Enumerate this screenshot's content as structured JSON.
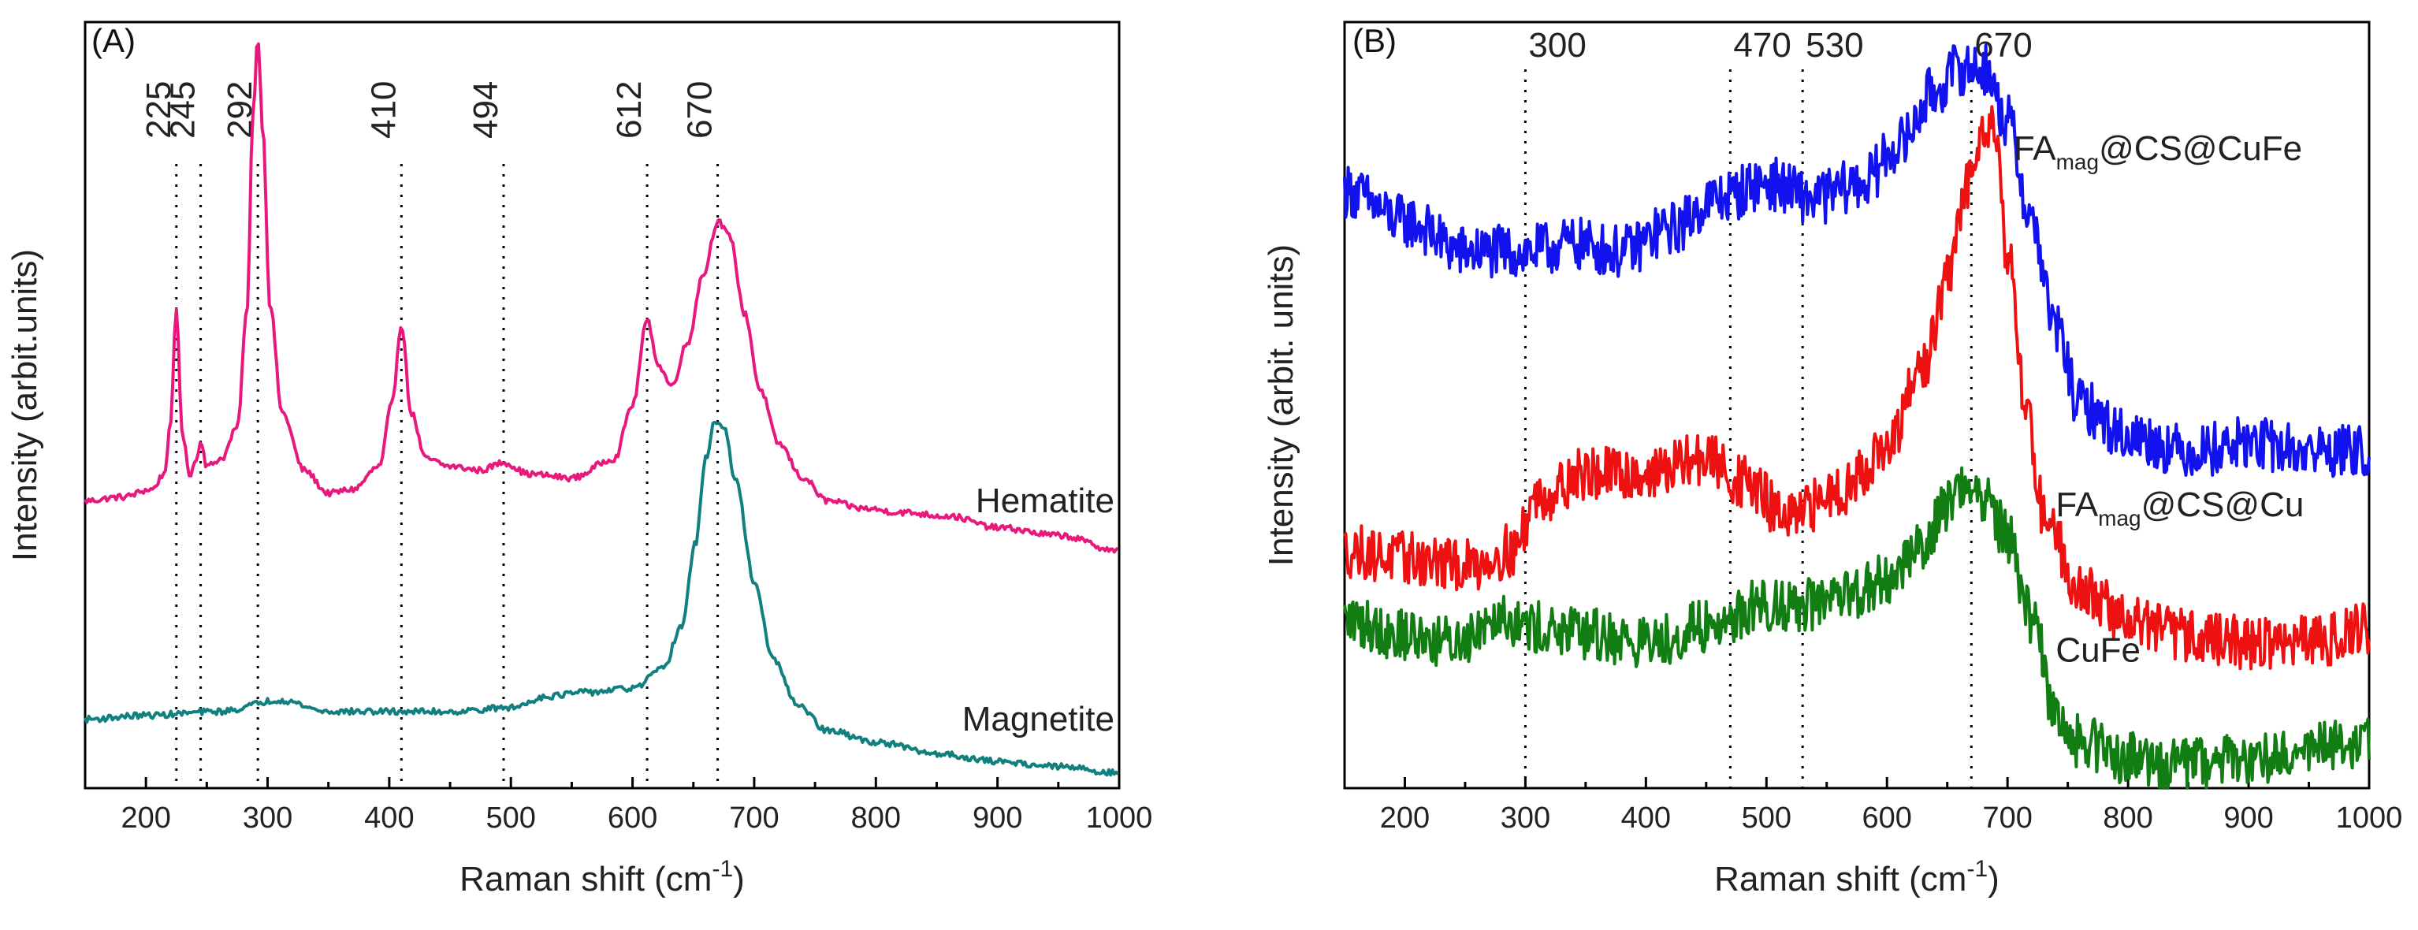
{
  "chart_data": [
    {
      "type": "line",
      "panel_label": "(A)",
      "xlabel": "Raman shift (cm",
      "xlabel_sup": "-1",
      "xlabel_end": ")",
      "ylabel": "Intensity (arbit.units)",
      "xlim": [
        150,
        1000
      ],
      "ylim": [
        0,
        1
      ],
      "x_ticks": [
        200,
        300,
        400,
        500,
        600,
        700,
        800,
        900,
        1000
      ],
      "x_tick_labels": [
        "200",
        "300",
        "400",
        "500",
        "600",
        "700",
        "800",
        "900",
        "1000"
      ],
      "peak_markers": [
        {
          "x": 225,
          "label": "225"
        },
        {
          "x": 245,
          "label": "245"
        },
        {
          "x": 292,
          "label": "292"
        },
        {
          "x": 410,
          "label": "410"
        },
        {
          "x": 494,
          "label": "494"
        },
        {
          "x": 612,
          "label": "612"
        },
        {
          "x": 670,
          "label": "670"
        }
      ],
      "series": [
        {
          "name": "Hematite",
          "color": "#e8197d",
          "label_at": [
            1000,
            0.36
          ],
          "noise": 0.004,
          "x": [
            150,
            180,
            205,
            215,
            220,
            225,
            230,
            236,
            242,
            245,
            250,
            262,
            275,
            283,
            288,
            292,
            296,
            302,
            312,
            330,
            350,
            370,
            392,
            402,
            410,
            418,
            430,
            450,
            475,
            494,
            515,
            550,
            585,
            600,
            612,
            622,
            632,
            645,
            658,
            670,
            680,
            692,
            705,
            720,
            740,
            760,
            790,
            820,
            860,
            900,
            950,
            1000
          ],
          "values": [
            0.375,
            0.38,
            0.39,
            0.41,
            0.47,
            0.625,
            0.46,
            0.41,
            0.43,
            0.455,
            0.42,
            0.43,
            0.47,
            0.62,
            0.88,
            0.98,
            0.86,
            0.63,
            0.49,
            0.415,
            0.385,
            0.39,
            0.42,
            0.5,
            0.605,
            0.49,
            0.43,
            0.42,
            0.415,
            0.425,
            0.41,
            0.405,
            0.43,
            0.5,
            0.61,
            0.55,
            0.525,
            0.58,
            0.67,
            0.74,
            0.72,
            0.62,
            0.52,
            0.45,
            0.405,
            0.375,
            0.365,
            0.36,
            0.355,
            0.34,
            0.33,
            0.31
          ]
        },
        {
          "name": "Magnetite",
          "color": "#11807e",
          "label_at": [
            1000,
            0.075
          ],
          "noise": 0.004,
          "x": [
            150,
            200,
            260,
            310,
            350,
            400,
            450,
            500,
            530,
            560,
            600,
            625,
            640,
            652,
            660,
            668,
            675,
            685,
            700,
            715,
            735,
            760,
            800,
            850,
            900,
            950,
            1000
          ],
          "values": [
            0.09,
            0.095,
            0.1,
            0.115,
            0.1,
            0.1,
            0.1,
            0.105,
            0.12,
            0.125,
            0.13,
            0.155,
            0.21,
            0.32,
            0.43,
            0.48,
            0.47,
            0.4,
            0.27,
            0.17,
            0.11,
            0.075,
            0.06,
            0.045,
            0.035,
            0.028,
            0.02
          ]
        }
      ]
    },
    {
      "type": "line",
      "panel_label": "(B)",
      "xlabel": "Raman shift (cm",
      "xlabel_sup": "-1",
      "xlabel_end": ")",
      "ylabel": "Intensity (arbit. units)",
      "xlim": [
        150,
        1000
      ],
      "ylim": [
        0,
        1
      ],
      "x_ticks": [
        200,
        300,
        400,
        500,
        600,
        700,
        800,
        900,
        1000
      ],
      "x_tick_labels": [
        "200",
        "300",
        "400",
        "500",
        "600",
        "700",
        "800",
        "900",
        "1000"
      ],
      "peak_markers": [
        {
          "x": 300,
          "label": "300"
        },
        {
          "x": 470,
          "label": "470"
        },
        {
          "x": 530,
          "label": "530"
        },
        {
          "x": 670,
          "label": "670"
        }
      ],
      "series": [
        {
          "name": "FA",
          "name_sub": "mag",
          "name_end": "@CS@CuFe",
          "color": "#1212ee",
          "label_at": [
            705,
            0.82
          ],
          "noise": 0.035,
          "x": [
            150,
            200,
            250,
            300,
            340,
            380,
            420,
            460,
            500,
            540,
            580,
            610,
            640,
            660,
            680,
            700,
            720,
            740,
            760,
            800,
            850,
            900,
            950,
            1000
          ],
          "values": [
            0.78,
            0.74,
            0.7,
            0.7,
            0.71,
            0.7,
            0.73,
            0.77,
            0.79,
            0.77,
            0.79,
            0.84,
            0.91,
            0.94,
            0.94,
            0.87,
            0.74,
            0.6,
            0.5,
            0.46,
            0.44,
            0.45,
            0.44,
            0.44
          ]
        },
        {
          "name": "FA",
          "name_sub": "mag",
          "name_end": "@CS@Cu",
          "color": "#ee1111",
          "label_at": [
            740,
            0.355
          ],
          "noise": 0.035,
          "x": [
            150,
            200,
            250,
            290,
            310,
            350,
            400,
            450,
            480,
            520,
            560,
            600,
            630,
            650,
            665,
            680,
            690,
            700,
            715,
            730,
            760,
            800,
            850,
            900,
            950,
            1000
          ],
          "values": [
            0.31,
            0.3,
            0.29,
            0.31,
            0.38,
            0.41,
            0.41,
            0.43,
            0.4,
            0.35,
            0.39,
            0.44,
            0.55,
            0.66,
            0.78,
            0.87,
            0.86,
            0.7,
            0.5,
            0.36,
            0.26,
            0.22,
            0.2,
            0.19,
            0.19,
            0.21
          ]
        },
        {
          "name": "CuFe",
          "color": "#127d12",
          "label_at": [
            740,
            0.165
          ],
          "noise": 0.035,
          "x": [
            150,
            200,
            240,
            280,
            300,
            350,
            400,
            450,
            500,
            550,
            600,
            630,
            650,
            665,
            680,
            700,
            720,
            740,
            760,
            800,
            850,
            900,
            950,
            1000
          ],
          "values": [
            0.22,
            0.2,
            0.19,
            0.23,
            0.21,
            0.2,
            0.19,
            0.21,
            0.24,
            0.24,
            0.27,
            0.32,
            0.37,
            0.4,
            0.38,
            0.33,
            0.22,
            0.1,
            0.06,
            0.04,
            0.03,
            0.04,
            0.05,
            0.06
          ]
        }
      ]
    }
  ]
}
